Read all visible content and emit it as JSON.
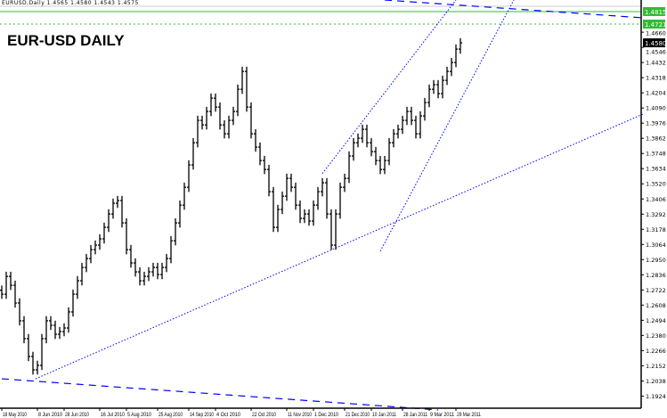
{
  "header": {
    "info": "EURUSD,Daily 1.4565 1.4580 1.4543 1.4575"
  },
  "chart_data": {
    "type": "ohlc-bar",
    "title": "EUR-USD DAILY",
    "ylim": [
      1.1833,
      1.4902
    ],
    "grid": false,
    "closes": [
      1.269,
      1.2824,
      1.2757,
      1.2624,
      1.249,
      1.2356,
      1.2222,
      1.2121,
      1.2155,
      1.2356,
      1.249,
      1.2456,
      1.2389,
      1.2409,
      1.2436,
      1.2557,
      1.269,
      1.2791,
      1.2891,
      1.2958,
      1.3025,
      1.3059,
      1.3106,
      1.3193,
      1.3293,
      1.3374,
      1.3394,
      1.3226,
      1.3025,
      1.2925,
      1.2858,
      1.2791,
      1.2824,
      1.2858,
      1.2891,
      1.2838,
      1.2891,
      1.2958,
      1.3092,
      1.3226,
      1.336,
      1.3494,
      1.3662,
      1.3829,
      1.3997,
      1.3963,
      1.4064,
      1.4164,
      1.4097,
      1.3963,
      1.3896,
      1.3997,
      1.4064,
      1.4231,
      1.4365,
      1.4097,
      1.3896,
      1.3796,
      1.3695,
      1.3628,
      1.3461,
      1.3193,
      1.3327,
      1.3427,
      1.3561,
      1.3494,
      1.336,
      1.326,
      1.3293,
      1.324,
      1.336,
      1.3461,
      1.3528,
      1.3293,
      1.3059,
      1.3293,
      1.3494,
      1.3561,
      1.3729,
      1.3829,
      1.3863,
      1.393,
      1.3829,
      1.3762,
      1.3695,
      1.3628,
      1.3695,
      1.3829,
      1.3896,
      1.393,
      1.3997,
      1.4064,
      1.3997,
      1.3896,
      1.403,
      1.4131,
      1.4231,
      1.4265,
      1.4198,
      1.4298,
      1.4365,
      1.4432,
      1.4533,
      1.458
    ],
    "y_ticks": [
      "1.4660",
      "1.4546",
      "1.4432",
      "1.4318",
      "1.4204",
      "1.4090",
      "1.3976",
      "1.3862",
      "1.3748",
      "1.3634",
      "1.3520",
      "1.3406",
      "1.3292",
      "1.3178",
      "1.3064",
      "1.2950",
      "1.2836",
      "1.2722",
      "1.2608",
      "1.2494",
      "1.2380",
      "1.2266",
      "1.2152",
      "1.2038",
      "1.1924"
    ],
    "x_ticks": [
      {
        "label": "18 May 2010",
        "i": 0
      },
      {
        "label": "8 Jun 2010",
        "i": 8
      },
      {
        "label": "28 Jun 2010",
        "i": 14
      },
      {
        "label": "16 Jul 2010",
        "i": 22
      },
      {
        "label": "5 Aug 2010",
        "i": 28
      },
      {
        "label": "25 Aug 2010",
        "i": 35
      },
      {
        "label": "14 Sep 2010",
        "i": 42
      },
      {
        "label": "4 Oct 2010",
        "i": 48
      },
      {
        "label": "22 Oct 2010",
        "i": 56
      },
      {
        "label": "11 Nov 2010",
        "i": 64
      },
      {
        "label": "1 Dec 2010",
        "i": 70
      },
      {
        "label": "21 Dec 2010",
        "i": 77
      },
      {
        "label": "10 Jan 2011",
        "i": 83
      },
      {
        "label": "28 Jan 2011",
        "i": 90
      },
      {
        "label": "9 Mar 2011",
        "i": 96
      },
      {
        "label": "29 Mar 2011",
        "i": 102
      }
    ],
    "trendlines": [
      {
        "from": [
          7.6,
          1.2054
        ],
        "to": [
          144,
          1.4044
        ],
        "style": "dotted"
      },
      {
        "from": [
          85,
          1.3013
        ],
        "to": [
          115,
          1.4902
        ],
        "style": "dotted"
      },
      {
        "from": [
          72,
          1.3597
        ],
        "to": [
          102,
          1.4902
        ],
        "style": "dotted"
      },
      {
        "from": [
          86,
          1.4902
        ],
        "to": [
          144,
          1.4768
        ],
        "style": "dashed"
      },
      {
        "from": [
          0,
          1.2054
        ],
        "to": [
          98,
          1.182
        ],
        "style": "dashed"
      }
    ],
    "levels": [
      {
        "price": 1.4815,
        "label": "1.4815",
        "style": "solid"
      },
      {
        "price": 1.4721,
        "label": "1.4721",
        "style": "dotted"
      }
    ],
    "current_price": "1.4580",
    "colors": {
      "bars": "#000000",
      "trendline": "#0000ff",
      "level": "#33bb33",
      "current": "#000000"
    }
  }
}
